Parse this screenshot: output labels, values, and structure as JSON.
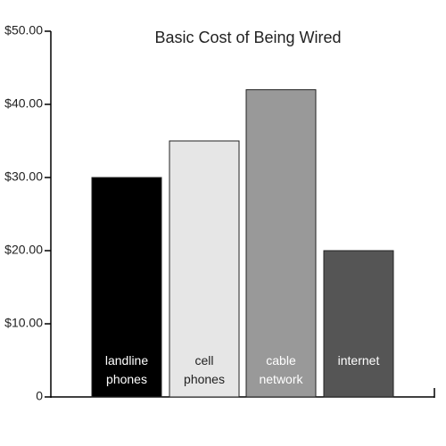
{
  "chart_data": {
    "type": "bar",
    "title": "Basic Cost of Being Wired",
    "categories": [
      [
        "landline",
        "phones"
      ],
      [
        "cell",
        "phones"
      ],
      [
        "cable",
        "network"
      ],
      [
        "internet"
      ]
    ],
    "values": [
      30,
      35,
      42,
      20
    ],
    "colors": [
      "#000000",
      "#e6e6e6",
      "#999999",
      "#555555"
    ],
    "label_colors": [
      "#ffffff",
      "#222222",
      "#ffffff",
      "#ffffff"
    ],
    "ylim": [
      0,
      50
    ],
    "yticks": [
      0,
      {
        "value": 10,
        "label": "$10.00"
      },
      {
        "value": 20,
        "label": "$20.00"
      },
      {
        "value": 30,
        "label": "$30.00"
      },
      {
        "value": 40,
        "label": "$40.00"
      },
      {
        "value": 50,
        "label": "$50.00"
      }
    ],
    "grid": false
  }
}
